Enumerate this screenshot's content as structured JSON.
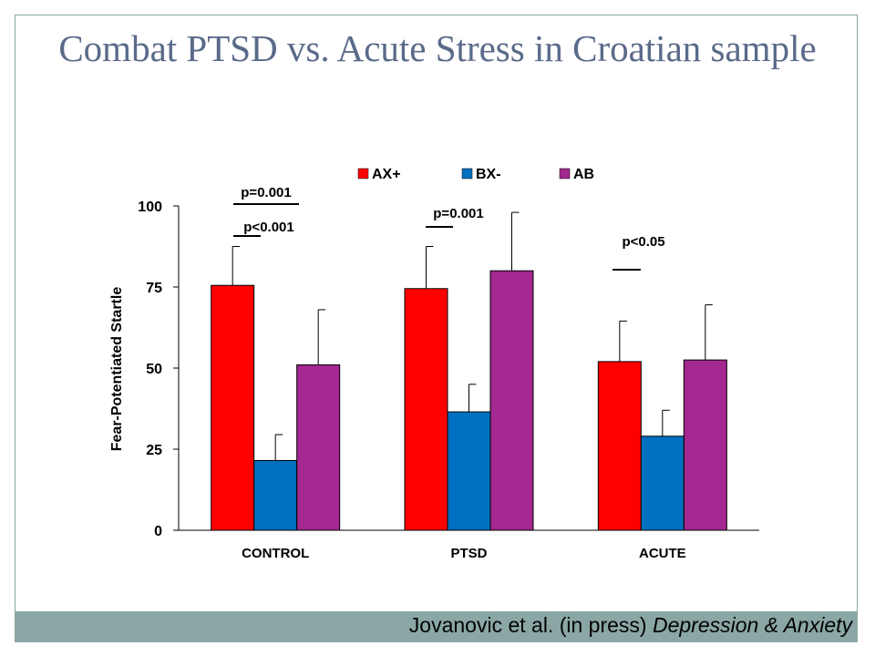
{
  "slide": {
    "title": "Combat PTSD vs. Acute Stress in Croatian sample",
    "citation_authors": "Jovanovic et al. (in press) ",
    "citation_journal": "Depression & Anxiety"
  },
  "colors": {
    "AX+": "#ff0000",
    "BX-": "#0070c0",
    "AB": "#a3288f"
  },
  "chart_data": {
    "type": "bar",
    "ylabel": "Fear-Potentiated Startle",
    "ylim": [
      0,
      100
    ],
    "yticks": [
      0,
      25,
      50,
      75,
      100
    ],
    "categories": [
      "CONTROL",
      "PTSD",
      "ACUTE"
    ],
    "legend_position": "top",
    "series": [
      {
        "name": "AX+",
        "values": [
          75.5,
          74.5,
          52
        ],
        "errors": [
          12,
          13,
          12.5
        ]
      },
      {
        "name": "BX-",
        "values": [
          21.5,
          36.5,
          29
        ],
        "errors": [
          8,
          8.5,
          8
        ]
      },
      {
        "name": "AB",
        "values": [
          51,
          80,
          52.5
        ],
        "errors": [
          17,
          18,
          17
        ]
      }
    ],
    "annotations": [
      {
        "text": "p=0.001",
        "category": 0
      },
      {
        "text": "p<0.001",
        "category": 0
      },
      {
        "text": "p=0.001",
        "category": 1
      },
      {
        "text": "p<0.05",
        "category": 2
      }
    ]
  }
}
